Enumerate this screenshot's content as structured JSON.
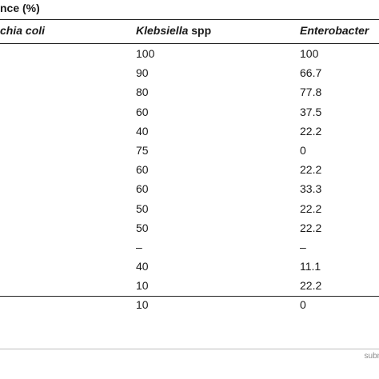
{
  "caption": "nce (%)",
  "columns": {
    "col0": "chia coli",
    "col1_italic": "Klebsiella",
    "col1_plain": " spp",
    "col2": "Enterobacter"
  },
  "rows": [
    {
      "klebsiella": "100",
      "enterobacter": "100"
    },
    {
      "klebsiella": "90",
      "enterobacter": "66.7"
    },
    {
      "klebsiella": "80",
      "enterobacter": "77.8"
    },
    {
      "klebsiella": "60",
      "enterobacter": "37.5"
    },
    {
      "klebsiella": "40",
      "enterobacter": "22.2"
    },
    {
      "klebsiella": "75",
      "enterobacter": "0"
    },
    {
      "klebsiella": "60",
      "enterobacter": "22.2"
    },
    {
      "klebsiella": "60",
      "enterobacter": "33.3"
    },
    {
      "klebsiella": "50",
      "enterobacter": "22.2"
    },
    {
      "klebsiella": "50",
      "enterobacter": "22.2"
    },
    {
      "klebsiella": "–",
      "enterobacter": "–"
    },
    {
      "klebsiella": "40",
      "enterobacter": "11.1"
    },
    {
      "klebsiella": "10",
      "enterobacter": "22.2"
    },
    {
      "klebsiella": "10",
      "enterobacter": "0"
    }
  ],
  "footer": "subm"
}
